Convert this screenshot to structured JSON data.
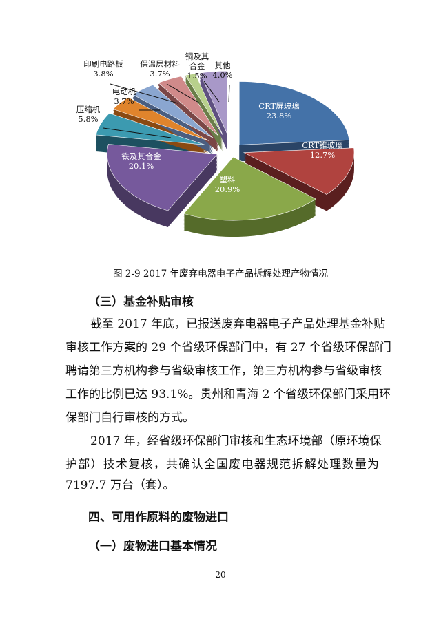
{
  "chart_data": {
    "type": "pie",
    "title": "",
    "start": "top",
    "direction": "clockwise",
    "style": "3d-exploded",
    "slices": [
      {
        "label": "CRT屏玻璃",
        "value": 23.8,
        "value_label": "23.8%",
        "color": "#4472a8",
        "side": "#2a4466"
      },
      {
        "label": "CRT锥玻璃",
        "value": 12.7,
        "value_label": "12.7%",
        "color": "#b0433f",
        "side": "#5a1f1f"
      },
      {
        "label": "塑料",
        "value": 20.9,
        "value_label": "20.9%",
        "color": "#8aa84a",
        "side": "#556b2a"
      },
      {
        "label": "铁及其合金",
        "value": 20.1,
        "value_label": "20.1%",
        "color": "#76599c",
        "side": "#483860"
      },
      {
        "label": "压缩机",
        "value": 5.8,
        "value_label": "5.8%",
        "color": "#3c9ab0",
        "side": "#1d5060"
      },
      {
        "label": "电动机",
        "value": 3.7,
        "value_label": "3.7%",
        "color": "#e0842c",
        "side": "#8a4a12"
      },
      {
        "label": "印刷电路板",
        "value": 3.8,
        "value_label": "3.8%",
        "color": "#8aa6d0",
        "side": "#4a5e80"
      },
      {
        "label": "保温层材料",
        "value": 3.7,
        "value_label": "3.7%",
        "color": "#d08a8a",
        "side": "#7a4646"
      },
      {
        "label": "铜及其合金",
        "label_lines": [
          "铜及其",
          "合金"
        ],
        "value": 1.5,
        "value_label": "1.5%",
        "color": "#b8d08c",
        "side": "#6a7e48"
      },
      {
        "label": "其他",
        "value": 4.0,
        "value_label": "4.0%",
        "color": "#a898c8",
        "side": "#5e5080"
      }
    ]
  },
  "caption": "图 2-9 2017 年废弃电器电子产品拆解处理产物情况",
  "section3": {
    "heading": "（三）基金补贴审核",
    "para1": [
      "截至 2017 年底，已报送废弃电器电子产品处理基金补贴",
      "审核工作方案的 29 个省级环保部门中，有 27 个省级环保部门",
      "聘请第三方机构参与省级审核工作，第三方机构参与省级审核",
      "工作的比例已达 93.1%。贵州和青海 2 个省级环保部门采用环",
      "保部门自行审核的方式。"
    ],
    "para2": [
      "2017 年，经省级环保部门审核和生态环境部（原环境保",
      "护部）技术复核，共确认全国废电器规范拆解处理数量为",
      "7197.7 万台（套）。"
    ]
  },
  "section4": {
    "heading": "四、可用作原料的废物进口",
    "sub_heading": "（一）废物进口基本情况"
  },
  "page_number": "20"
}
